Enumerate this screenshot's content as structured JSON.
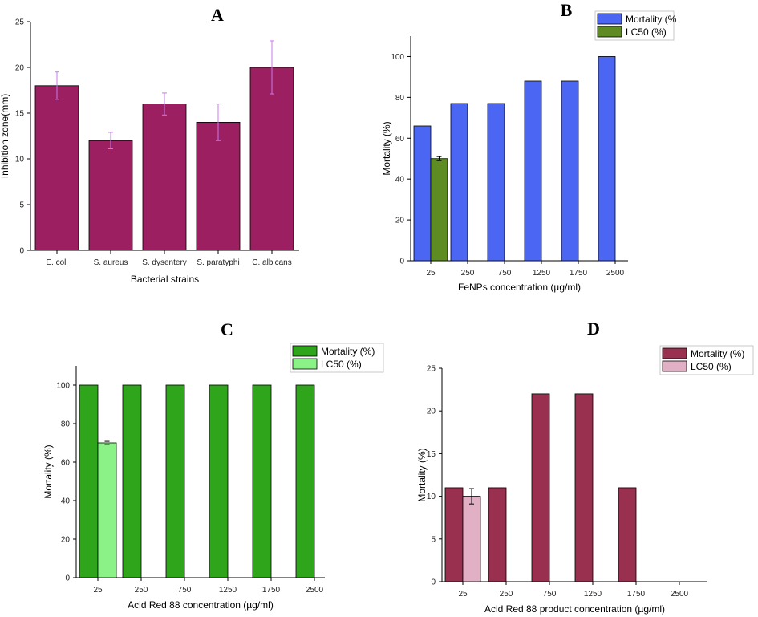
{
  "chart_data": [
    {
      "id": "A",
      "type": "bar",
      "panel_label": "A",
      "title": "",
      "xlabel": "Bacterial strains",
      "ylabel": "Inhibition zone(mm)",
      "categories": [
        "E. coli",
        "S. aureus",
        "S. dysentery",
        "S. paratyphi",
        "C. albicans"
      ],
      "ylim": [
        0,
        25
      ],
      "yticks": [
        "0",
        "5",
        "10",
        "15",
        "20",
        "25"
      ],
      "series": [
        {
          "name": "Inhibition zone",
          "color": "#9B1F61",
          "values": [
            18,
            12,
            16,
            14,
            20
          ],
          "errors": [
            1.5,
            0.9,
            1.2,
            2.0,
            2.9
          ]
        }
      ],
      "legend": false,
      "error_color": "#C77BE8"
    },
    {
      "id": "B",
      "type": "bar",
      "panel_label": "B",
      "title": "",
      "xlabel": "FeNPs concentration (µg/ml)",
      "ylabel": "Mortality (%)",
      "categories": [
        "25",
        "250",
        "750",
        "1250",
        "1750",
        "2500"
      ],
      "ylim": [
        0,
        110
      ],
      "yticks": [
        "0",
        "20",
        "40",
        "60",
        "80",
        "100"
      ],
      "series": [
        {
          "name": "Mortality (%",
          "color": "#4A66F2",
          "values": [
            66,
            77,
            77,
            88,
            88,
            100
          ]
        },
        {
          "name": "LC50 (%)",
          "color": "#5E8C22",
          "values": [
            50,
            null,
            null,
            null,
            null,
            null
          ],
          "errors": [
            1,
            null,
            null,
            null,
            null,
            null
          ]
        }
      ],
      "legend": true,
      "error_color": "#000000"
    },
    {
      "id": "C",
      "type": "bar",
      "panel_label": "C",
      "title": "",
      "xlabel": "Acid Red 88 concentration (µg/ml)",
      "ylabel": "Mortality (%)",
      "categories": [
        "25",
        "250",
        "750",
        "1250",
        "1750",
        "2500"
      ],
      "ylim": [
        0,
        110
      ],
      "yticks": [
        "0",
        "20",
        "40",
        "60",
        "80",
        "100"
      ],
      "series": [
        {
          "name": "Mortality (%)",
          "color": "#2FA51C",
          "values": [
            100,
            100,
            100,
            100,
            100,
            100
          ]
        },
        {
          "name": "LC50 (%)",
          "color": "#8AF286",
          "values": [
            70,
            null,
            null,
            null,
            null,
            null
          ],
          "errors": [
            0.8,
            null,
            null,
            null,
            null,
            null
          ]
        }
      ],
      "legend": true,
      "error_color": "#000000"
    },
    {
      "id": "D",
      "type": "bar",
      "panel_label": "D",
      "title": "",
      "xlabel": "Acid Red 88 product concentration (µg/ml)",
      "ylabel": "Mortality (%)",
      "categories": [
        "25",
        "250",
        "750",
        "1250",
        "1750",
        "2500"
      ],
      "ylim": [
        0,
        25
      ],
      "yticks": [
        "0",
        "5",
        "10",
        "15",
        "20",
        "25"
      ],
      "series": [
        {
          "name": "Mortality (%)",
          "color": "#9A3050",
          "values": [
            11,
            11,
            22,
            22,
            11,
            0
          ]
        },
        {
          "name": "LC50 (%)",
          "color": "#E2B0C4",
          "values": [
            10,
            null,
            null,
            null,
            null,
            null
          ],
          "errors": [
            0.9,
            null,
            null,
            null,
            null,
            null
          ]
        }
      ],
      "legend": true,
      "error_color": "#000000"
    }
  ]
}
